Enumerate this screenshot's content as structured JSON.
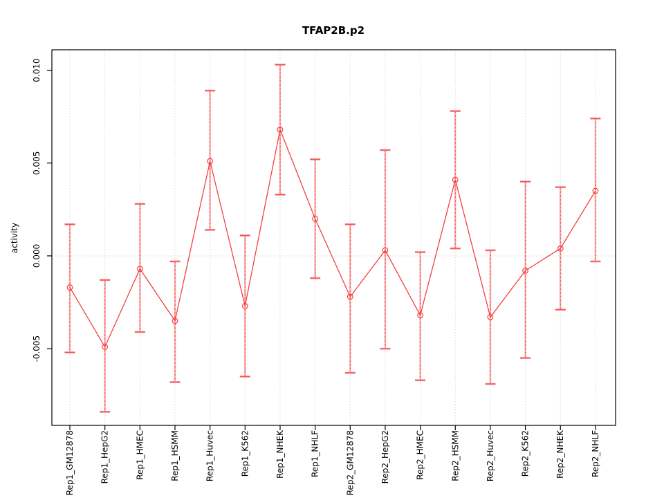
{
  "page": {
    "background": "#ffffff"
  },
  "chart_data": {
    "type": "line",
    "title": "TFAP2B.p2",
    "xlabel": "",
    "ylabel": "activity",
    "categories": [
      "Rep1_GM12878",
      "Rep1_HepG2",
      "Rep1_HMEC",
      "Rep1_HSMM",
      "Rep1_Huvec",
      "Rep1_K562",
      "Rep1_NHEK",
      "Rep1_NHLF",
      "Rep2_GM12878",
      "Rep2_HepG2",
      "Rep2_HMEC",
      "Rep2_HSMM",
      "Rep2_Huvec",
      "Rep2_K562",
      "Rep2_NHEK",
      "Rep2_NHLF"
    ],
    "series": [
      {
        "name": "activity",
        "marker": "open-circle",
        "values": [
          -0.0017,
          -0.0049,
          -0.0007,
          -0.0035,
          0.0051,
          -0.0027,
          0.0068,
          0.002,
          -0.0022,
          0.0003,
          -0.0032,
          0.0041,
          -0.0033,
          -0.0008,
          0.0004,
          0.0035
        ],
        "error_high": [
          0.0017,
          -0.0013,
          0.0028,
          -0.0003,
          0.0089,
          0.0011,
          0.0103,
          0.0052,
          0.0017,
          0.0057,
          0.0002,
          0.0078,
          0.0003,
          0.004,
          0.0037,
          0.0074
        ],
        "error_low": [
          -0.0052,
          -0.0084,
          -0.0041,
          -0.0068,
          0.0014,
          -0.0065,
          0.0033,
          -0.0012,
          -0.0063,
          -0.005,
          -0.0067,
          0.0004,
          -0.0069,
          -0.0055,
          -0.0029,
          -0.0003
        ]
      }
    ],
    "ylim": [
      -0.00913,
      0.0111
    ],
    "yticks": [
      {
        "value": -0.005,
        "label": "-0.005"
      },
      {
        "value": 0.0,
        "label": "0.000"
      },
      {
        "value": 0.005,
        "label": "0.005"
      },
      {
        "value": 0.01,
        "label": "0.010"
      }
    ],
    "grid": {
      "vertical_gridlines": "dotted line at every category",
      "horizontal_gridline_at": 0,
      "style": "dotted"
    },
    "legend_position": "none",
    "colors": {
      "series_line": "#f43f3f",
      "error_bar_dash": "#e04444",
      "error_bar_pale": "#ffabab",
      "error_cap_pale": "#f9807f",
      "gridline": "#d8d8d8",
      "axis": "#000000",
      "text": "#000000"
    }
  }
}
